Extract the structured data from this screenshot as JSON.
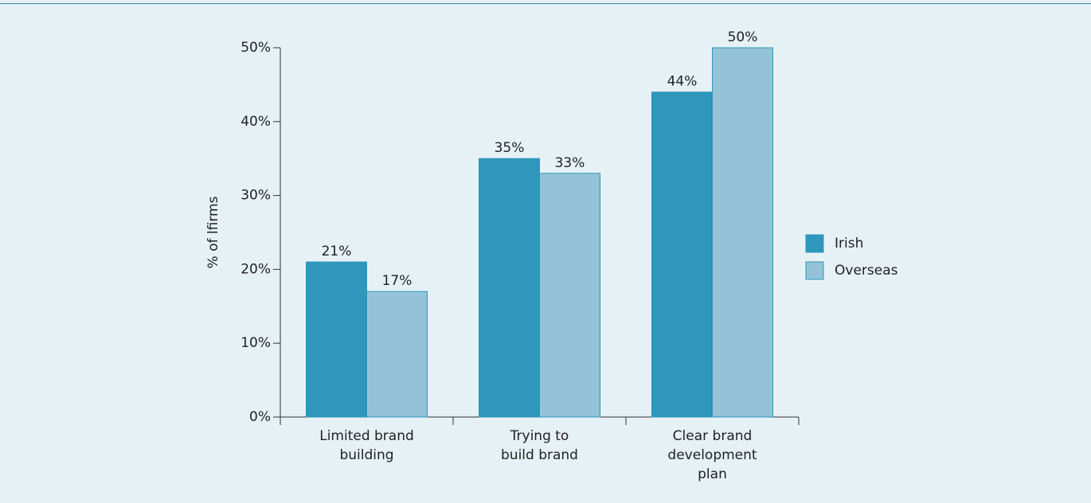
{
  "chart_data": {
    "type": "bar",
    "y_label": "% of lfirms",
    "categories": [
      "Limited brand\nbuilding",
      "Trying to\nbuild brand",
      "Clear brand\ndevelopment\nplan"
    ],
    "series": [
      {
        "name": "Irish",
        "color": "#2e97bb",
        "values": [
          21,
          35,
          44
        ],
        "value_labels": [
          "21%",
          "35%",
          "44%"
        ]
      },
      {
        "name": "Overseas",
        "color": "#94c3d8",
        "values": [
          17,
          33,
          50
        ],
        "value_labels": [
          "17%",
          "33%",
          "50%"
        ]
      }
    ],
    "ylim": [
      0,
      50
    ],
    "yticks": [
      {
        "value": 0,
        "label": "0%"
      },
      {
        "value": 10,
        "label": "10%"
      },
      {
        "value": 20,
        "label": "20%"
      },
      {
        "value": 30,
        "label": "30%"
      },
      {
        "value": 40,
        "label": "40%"
      },
      {
        "value": 50,
        "label": "50%"
      }
    ],
    "legend": "right"
  }
}
